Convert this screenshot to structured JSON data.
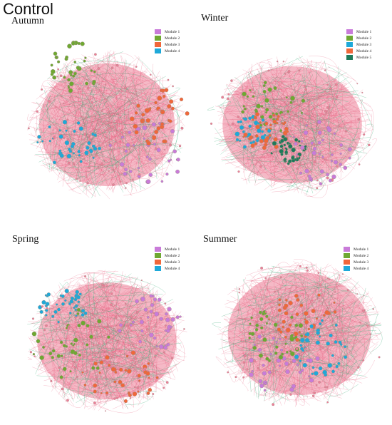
{
  "figure_title": "Control",
  "colors": {
    "edge_positive": "#e8617f",
    "edge_negative": "#3fae7d",
    "node_edge": "#9a8a80",
    "blob": "#ec7f98"
  },
  "panels": [
    {
      "id": "autumn",
      "title": "Autumn",
      "modules": [
        {
          "label": "Module 1",
          "color": "#c97bd9"
        },
        {
          "label": "Module 2",
          "color": "#6fa832"
        },
        {
          "label": "Module 3",
          "color": "#f0673a"
        },
        {
          "label": "Module 4",
          "color": "#1ea9d9"
        }
      ]
    },
    {
      "id": "winter",
      "title": "Winter",
      "modules": [
        {
          "label": "Module 1",
          "color": "#c97bd9"
        },
        {
          "label": "Module 2",
          "color": "#6fa832"
        },
        {
          "label": "Module 3",
          "color": "#1ea9d9"
        },
        {
          "label": "Module 4",
          "color": "#f0673a"
        },
        {
          "label": "Module 5",
          "color": "#1f7a5a"
        }
      ]
    },
    {
      "id": "spring",
      "title": "Spring",
      "modules": [
        {
          "label": "Module 1",
          "color": "#c97bd9"
        },
        {
          "label": "Module 2",
          "color": "#6fa832"
        },
        {
          "label": "Module 3",
          "color": "#f0673a"
        },
        {
          "label": "Module 4",
          "color": "#1ea9d9"
        }
      ]
    },
    {
      "id": "summer",
      "title": "Summer",
      "modules": [
        {
          "label": "Module 1",
          "color": "#c97bd9"
        },
        {
          "label": "Module 2",
          "color": "#6fa832"
        },
        {
          "label": "Module 3",
          "color": "#f0673a"
        },
        {
          "label": "Module 4",
          "color": "#1ea9d9"
        }
      ]
    }
  ]
}
